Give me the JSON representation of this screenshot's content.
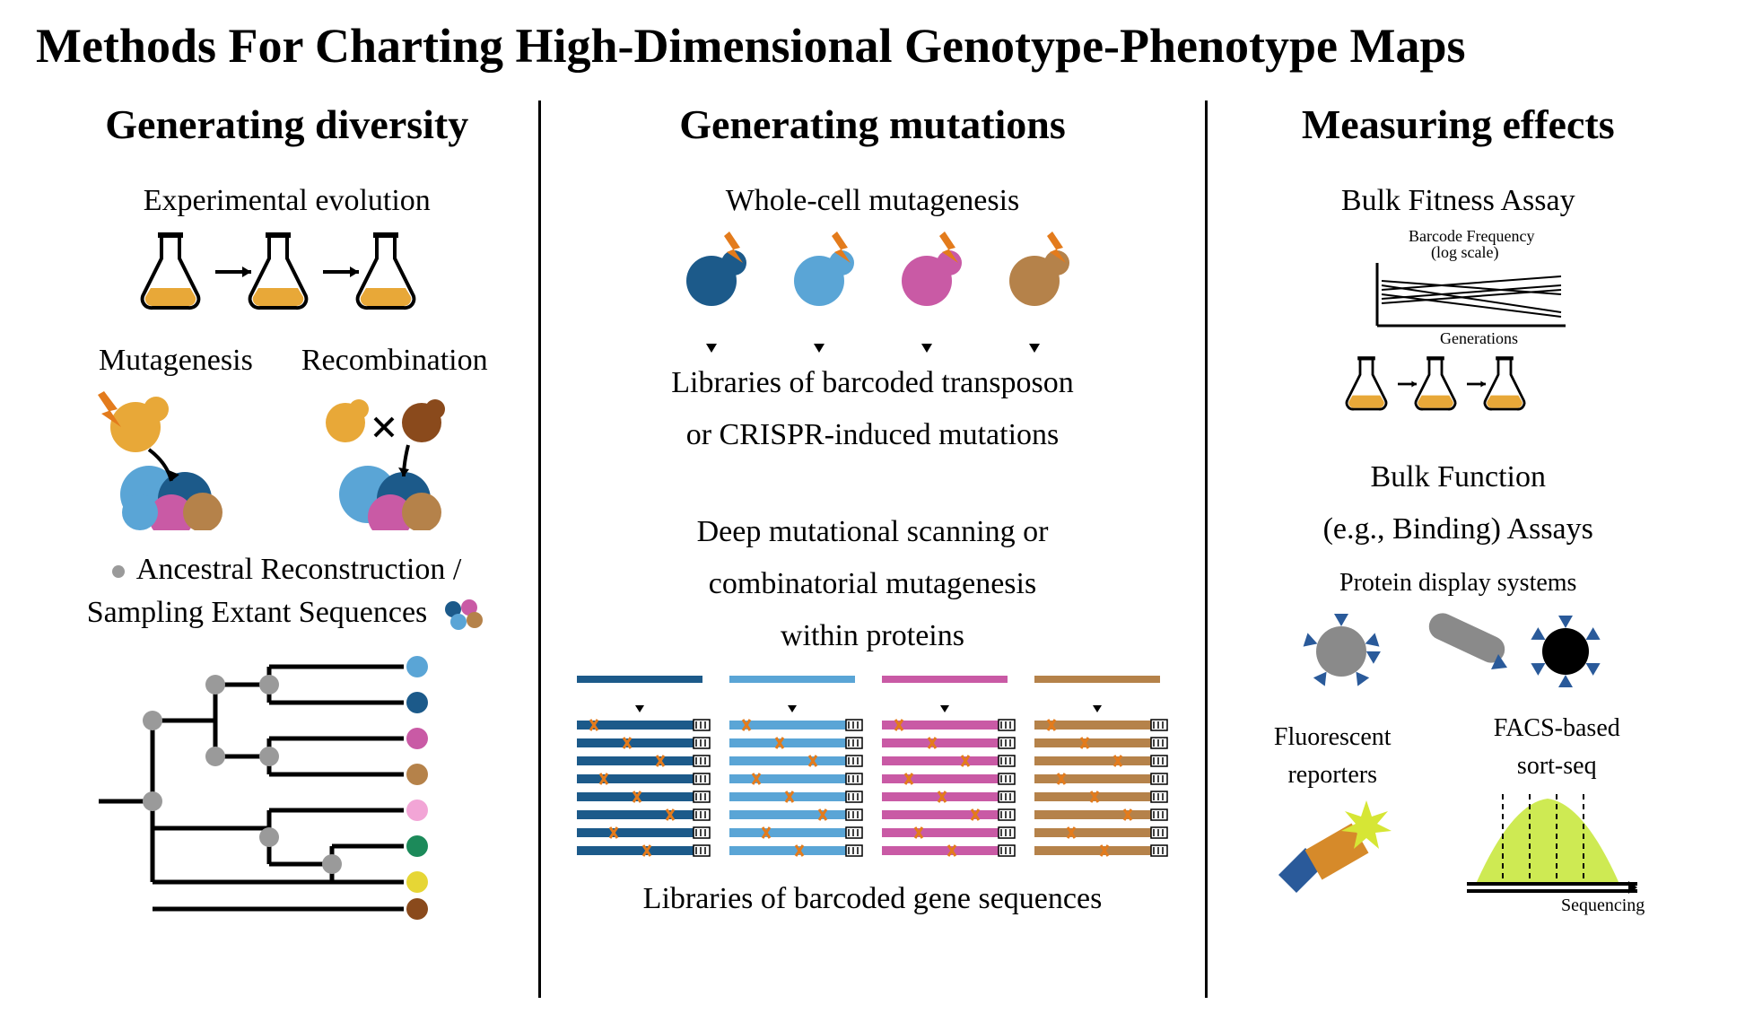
{
  "title": "Methods For Charting High-Dimensional Genotype-Phenotype Maps",
  "colors": {
    "dark_blue": "#1c5a8a",
    "light_blue": "#5aa5d6",
    "magenta": "#c95aa5",
    "tan": "#b5824a",
    "orange": "#e37b1c",
    "grey": "#9a9a9a",
    "black": "#1a1a1a",
    "yellow": "#d6e635",
    "lime": "#c5e635",
    "pink": "#f2a5d6",
    "green": "#1c8a5a",
    "yellow_dot": "#e6d635",
    "brown": "#8a4a1c"
  },
  "col1": {
    "title": "Generating diversity",
    "exp_evo": "Experimental evolution",
    "mutagenesis": "Mutagenesis",
    "recombination": "Recombination",
    "ancestral": "Ancestral Reconstruction /",
    "sampling": "Sampling Extant Sequences"
  },
  "col2": {
    "title": "Generating mutations",
    "whole_cell": "Whole-cell mutagenesis",
    "lib_transposon": "Libraries of barcoded transposon",
    "lib_crispr": "or CRISPR-induced mutations",
    "dms1": "Deep mutational scanning or",
    "dms2": "combinatorial mutagenesis",
    "dms3": "within proteins",
    "lib_gene": "Libraries of barcoded gene sequences"
  },
  "col3": {
    "title": "Measuring effects",
    "bulk_fitness": "Bulk Fitness Assay",
    "barcode_freq": "Barcode Frequency",
    "log_scale": "(log scale)",
    "generations": "Generations",
    "bulk_function": "Bulk Function",
    "binding_assays": "(e.g., Binding) Assays",
    "protein_display": "Protein display systems",
    "fluorescent": "Fluorescent",
    "reporters": "reporters",
    "facs": "FACS-based",
    "sortseq": "sort-seq",
    "sequencing": "Sequencing"
  },
  "flask_fill": "#e8a838",
  "dms_colors": [
    "#1c5a8a",
    "#5aa5d6",
    "#c95aa5",
    "#b5824a"
  ],
  "tree": {
    "tip_colors": [
      "#5aa5d6",
      "#1c5a8a",
      "#c95aa5",
      "#b5824a",
      "#f2a5d6",
      "#1c8a5a",
      "#e6d635",
      "#8a4a1c"
    ]
  }
}
